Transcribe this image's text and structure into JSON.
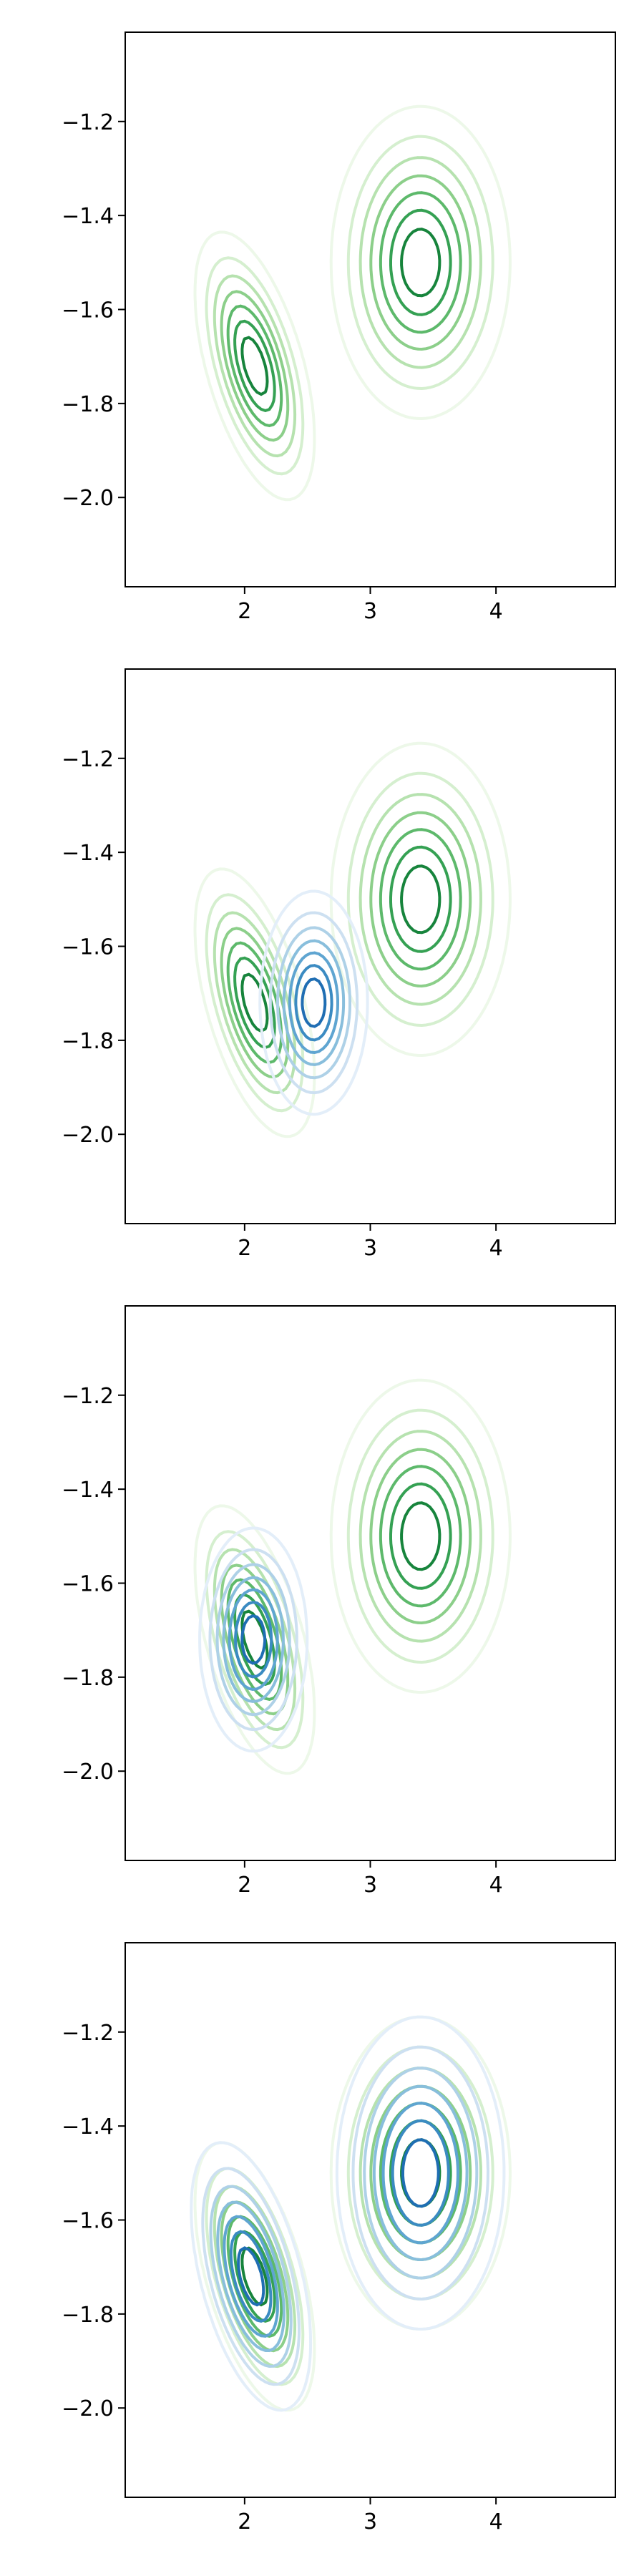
{
  "chart_data": [
    {
      "type": "contour",
      "panel": 1,
      "xlim": [
        1.05,
        4.95
      ],
      "ylim": [
        -2.19,
        -1.01
      ],
      "xticks": [
        2,
        3,
        4
      ],
      "yticks": [
        -2.0,
        -1.8,
        -1.6,
        -1.4,
        -1.2
      ],
      "xtick_labels": [
        "2",
        "3",
        "4"
      ],
      "ytick_labels": [
        "−2.0",
        "−1.8",
        "−1.6",
        "−1.4",
        "−1.2"
      ],
      "grid": false,
      "series": [
        {
          "colormap": "Greens",
          "components": [
            {
              "mean": [
                2.08,
                -1.72
              ],
              "sd": [
                0.2,
                0.12
              ],
              "rho": -0.55,
              "weight": 0.5
            },
            {
              "mean": [
                3.4,
                -1.5
              ],
              "sd": [
                0.3,
                0.14
              ],
              "rho": 0.0,
              "weight": 0.5
            }
          ]
        }
      ]
    },
    {
      "type": "contour",
      "panel": 2,
      "xlim": [
        1.05,
        4.95
      ],
      "ylim": [
        -2.19,
        -1.01
      ],
      "xticks": [
        2,
        3,
        4
      ],
      "yticks": [
        -2.0,
        -1.8,
        -1.6,
        -1.4,
        -1.2
      ],
      "xtick_labels": [
        "2",
        "3",
        "4"
      ],
      "ytick_labels": [
        "−2.0",
        "−1.8",
        "−1.6",
        "−1.4",
        "−1.2"
      ],
      "grid": false,
      "series": [
        {
          "colormap": "Greens",
          "components": [
            {
              "mean": [
                2.08,
                -1.72
              ],
              "sd": [
                0.2,
                0.12
              ],
              "rho": -0.55,
              "weight": 0.5
            },
            {
              "mean": [
                3.4,
                -1.5
              ],
              "sd": [
                0.3,
                0.14
              ],
              "rho": 0.0,
              "weight": 0.5
            }
          ]
        },
        {
          "colormap": "Blues",
          "components": [
            {
              "mean": [
                2.55,
                -1.72
              ],
              "sd": [
                0.18,
                0.1
              ],
              "rho": 0.0,
              "weight": 1.0
            }
          ]
        }
      ]
    },
    {
      "type": "contour",
      "panel": 3,
      "xlim": [
        1.05,
        4.95
      ],
      "ylim": [
        -2.19,
        -1.01
      ],
      "xticks": [
        2,
        3,
        4
      ],
      "yticks": [
        -2.0,
        -1.8,
        -1.6,
        -1.4,
        -1.2
      ],
      "xtick_labels": [
        "2",
        "3",
        "4"
      ],
      "ytick_labels": [
        "−2.0",
        "−1.8",
        "−1.6",
        "−1.4",
        "−1.2"
      ],
      "grid": false,
      "series": [
        {
          "colormap": "Greens",
          "components": [
            {
              "mean": [
                2.08,
                -1.72
              ],
              "sd": [
                0.2,
                0.12
              ],
              "rho": -0.55,
              "weight": 0.5
            },
            {
              "mean": [
                3.4,
                -1.5
              ],
              "sd": [
                0.3,
                0.14
              ],
              "rho": 0.0,
              "weight": 0.5
            }
          ]
        },
        {
          "colormap": "Blues",
          "components": [
            {
              "mean": [
                2.07,
                -1.72
              ],
              "sd": [
                0.18,
                0.1
              ],
              "rho": 0.0,
              "weight": 1.0
            }
          ]
        }
      ]
    },
    {
      "type": "contour",
      "panel": 4,
      "xlim": [
        1.05,
        4.95
      ],
      "ylim": [
        -2.19,
        -1.01
      ],
      "xticks": [
        2,
        3,
        4
      ],
      "yticks": [
        -2.0,
        -1.8,
        -1.6,
        -1.4,
        -1.2
      ],
      "xtick_labels": [
        "2",
        "3",
        "4"
      ],
      "ytick_labels": [
        "−2.0",
        "−1.8",
        "−1.6",
        "−1.4",
        "−1.2"
      ],
      "grid": false,
      "series": [
        {
          "colormap": "Greens",
          "components": [
            {
              "mean": [
                2.08,
                -1.72
              ],
              "sd": [
                0.2,
                0.12
              ],
              "rho": -0.55,
              "weight": 0.5
            },
            {
              "mean": [
                3.4,
                -1.5
              ],
              "sd": [
                0.3,
                0.14
              ],
              "rho": 0.0,
              "weight": 0.5
            }
          ]
        },
        {
          "colormap": "Blues",
          "components": [
            {
              "mean": [
                2.05,
                -1.72
              ],
              "sd": [
                0.2,
                0.12
              ],
              "rho": -0.5,
              "weight": 0.5
            },
            {
              "mean": [
                3.4,
                -1.5
              ],
              "sd": [
                0.28,
                0.14
              ],
              "rho": 0.0,
              "weight": 0.5
            }
          ]
        }
      ]
    }
  ],
  "colors": {
    "Greens": [
      "#edf8e9",
      "#d5efcf",
      "#b6e2af",
      "#8ccf8a",
      "#5db96b",
      "#35a153",
      "#17843c"
    ],
    "Blues": [
      "#e3eef9",
      "#cde0f1",
      "#aed1e7",
      "#88bedc",
      "#5fa5d1",
      "#3b8bc2",
      "#1f6eb3"
    ]
  }
}
